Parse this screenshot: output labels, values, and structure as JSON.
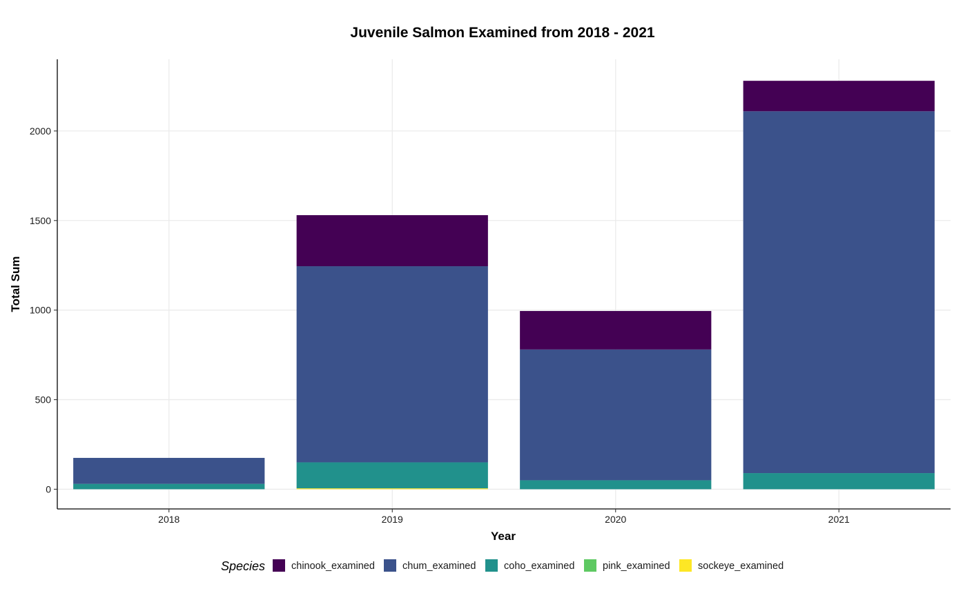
{
  "chart_data": {
    "type": "bar",
    "stacked": true,
    "title": "Juvenile Salmon Examined from 2018 - 2021",
    "xlabel": "Year",
    "ylabel": "Total Sum",
    "categories": [
      "2018",
      "2019",
      "2020",
      "2021"
    ],
    "ylim": [
      -110,
      2400
    ],
    "yticks": [
      0,
      500,
      1000,
      1500,
      2000
    ],
    "grid": true,
    "legend_position": "bottom",
    "legend_title": "Species",
    "series": [
      {
        "name": "sockeye_examined",
        "color": "#fde725",
        "values": [
          0,
          5,
          0,
          0
        ]
      },
      {
        "name": "pink_examined",
        "color": "#5ec962",
        "values": [
          0,
          0,
          0,
          0
        ]
      },
      {
        "name": "coho_examined",
        "color": "#21918c",
        "values": [
          30,
          145,
          50,
          90
        ]
      },
      {
        "name": "chum_examined",
        "color": "#3b528b",
        "values": [
          145,
          1095,
          730,
          2020
        ]
      },
      {
        "name": "chinook_examined",
        "color": "#440154",
        "values": [
          0,
          285,
          215,
          170
        ]
      }
    ],
    "legend_order": [
      "chinook_examined",
      "chum_examined",
      "coho_examined",
      "pink_examined",
      "sockeye_examined"
    ]
  }
}
